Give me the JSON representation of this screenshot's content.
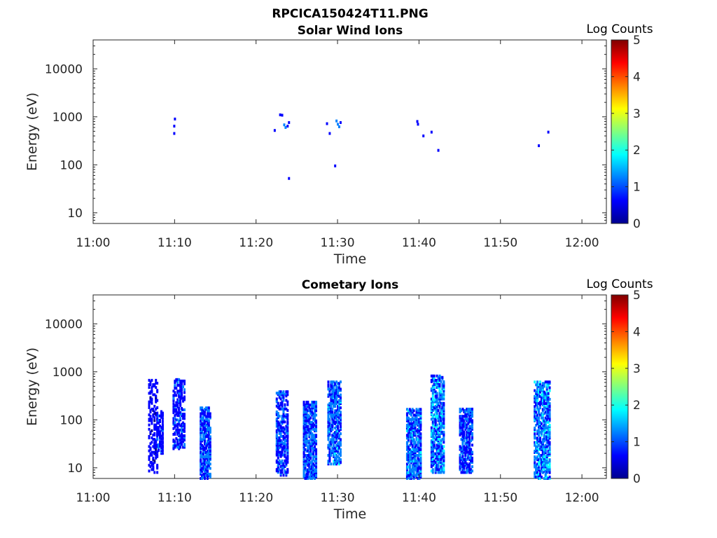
{
  "figure_title": "RPCICA150424T11.PNG",
  "colormap": [
    "#00008f",
    "#0000ff",
    "#0080ff",
    "#00ffff",
    "#80ff80",
    "#ffff00",
    "#ff8000",
    "#ff0000",
    "#800000"
  ],
  "chart_data": [
    {
      "type": "heatmap",
      "title": "Solar Wind Ions",
      "xlabel": "Time",
      "ylabel": "Energy (eV)",
      "x_scale": "time",
      "y_scale": "log",
      "xlim": [
        "11:00",
        "12:03"
      ],
      "ylim": [
        6,
        40000
      ],
      "x_ticks": [
        "11:00",
        "11:10",
        "11:20",
        "11:30",
        "11:40",
        "11:50",
        "12:00"
      ],
      "y_ticks": [
        10,
        100,
        1000,
        10000
      ],
      "y_tick_labels": [
        "10",
        "100",
        "1000",
        "10000"
      ],
      "colorbar": {
        "label": "Log Counts",
        "range": [
          0,
          5
        ],
        "ticks": [
          "0",
          "1",
          "2",
          "3",
          "4",
          "5"
        ]
      },
      "points": [
        {
          "t": "11:09:55",
          "e": 450,
          "v": 0.8
        },
        {
          "t": "11:09:55",
          "e": 640,
          "v": 0.8
        },
        {
          "t": "11:10:00",
          "e": 900,
          "v": 0.9
        },
        {
          "t": "11:22:15",
          "e": 520,
          "v": 0.8
        },
        {
          "t": "11:22:55",
          "e": 1100,
          "v": 0.8
        },
        {
          "t": "11:23:10",
          "e": 1080,
          "v": 0.9
        },
        {
          "t": "11:23:25",
          "e": 680,
          "v": 1.0
        },
        {
          "t": "11:23:35",
          "e": 600,
          "v": 1.2
        },
        {
          "t": "11:23:50",
          "e": 640,
          "v": 0.9
        },
        {
          "t": "11:24:00",
          "e": 760,
          "v": 0.8
        },
        {
          "t": "11:24:00",
          "e": 52,
          "v": 0.7
        },
        {
          "t": "11:28:40",
          "e": 720,
          "v": 0.8
        },
        {
          "t": "11:29:00",
          "e": 450,
          "v": 0.8
        },
        {
          "t": "11:29:40",
          "e": 95,
          "v": 0.7
        },
        {
          "t": "11:29:50",
          "e": 820,
          "v": 1.0
        },
        {
          "t": "11:30:00",
          "e": 700,
          "v": 1.3
        },
        {
          "t": "11:30:10",
          "e": 620,
          "v": 1.1
        },
        {
          "t": "11:30:20",
          "e": 760,
          "v": 0.9
        },
        {
          "t": "11:39:45",
          "e": 800,
          "v": 0.8
        },
        {
          "t": "11:39:50",
          "e": 700,
          "v": 0.8
        },
        {
          "t": "11:40:30",
          "e": 400,
          "v": 0.9
        },
        {
          "t": "11:41:30",
          "e": 480,
          "v": 0.8
        },
        {
          "t": "11:42:20",
          "e": 200,
          "v": 0.9
        },
        {
          "t": "11:54:40",
          "e": 250,
          "v": 0.7
        },
        {
          "t": "11:55:50",
          "e": 480,
          "v": 0.9
        }
      ]
    },
    {
      "type": "heatmap",
      "title": "Cometary Ions",
      "xlabel": "Time",
      "ylabel": "Energy (eV)",
      "x_scale": "time",
      "y_scale": "log",
      "xlim": [
        "11:00",
        "12:03"
      ],
      "ylim": [
        6,
        40000
      ],
      "x_ticks": [
        "11:00",
        "11:10",
        "11:20",
        "11:30",
        "11:40",
        "11:50",
        "12:00"
      ],
      "y_ticks": [
        10,
        100,
        1000,
        10000
      ],
      "y_tick_labels": [
        "10",
        "100",
        "1000",
        "10000"
      ],
      "colorbar": {
        "label": "Log Counts",
        "range": [
          0,
          5
        ],
        "ticks": [
          "0",
          "1",
          "2",
          "3",
          "4",
          "5"
        ]
      },
      "bursts": [
        {
          "t0": "11:06:50",
          "t1": "11:07:50",
          "e_lo": 8,
          "e_hi": 700,
          "v": 0.6,
          "density": 0.35
        },
        {
          "t0": "11:07:50",
          "t1": "11:08:30",
          "e_lo": 20,
          "e_hi": 150,
          "v": 0.8,
          "density": 0.5
        },
        {
          "t0": "11:09:50",
          "t1": "11:11:10",
          "e_lo": 25,
          "e_hi": 700,
          "v": 0.8,
          "density": 0.45
        },
        {
          "t0": "11:13:10",
          "t1": "11:14:20",
          "e_lo": 6,
          "e_hi": 180,
          "v": 1.0,
          "density": 0.6
        },
        {
          "t0": "11:22:30",
          "t1": "11:23:50",
          "e_lo": 7,
          "e_hi": 400,
          "v": 0.9,
          "density": 0.5
        },
        {
          "t0": "11:25:50",
          "t1": "11:27:20",
          "e_lo": 6,
          "e_hi": 250,
          "v": 1.1,
          "density": 0.6
        },
        {
          "t0": "11:28:50",
          "t1": "11:30:20",
          "e_lo": 12,
          "e_hi": 650,
          "v": 1.2,
          "density": 0.55
        },
        {
          "t0": "11:38:30",
          "t1": "11:40:10",
          "e_lo": 6,
          "e_hi": 170,
          "v": 1.2,
          "density": 0.6
        },
        {
          "t0": "11:41:30",
          "t1": "11:43:00",
          "e_lo": 8,
          "e_hi": 850,
          "v": 1.3,
          "density": 0.55
        },
        {
          "t0": "11:45:00",
          "t1": "11:46:30",
          "e_lo": 8,
          "e_hi": 170,
          "v": 1.0,
          "density": 0.55
        },
        {
          "t0": "11:54:10",
          "t1": "11:56:00",
          "e_lo": 6,
          "e_hi": 650,
          "v": 1.3,
          "density": 0.55
        }
      ]
    }
  ]
}
